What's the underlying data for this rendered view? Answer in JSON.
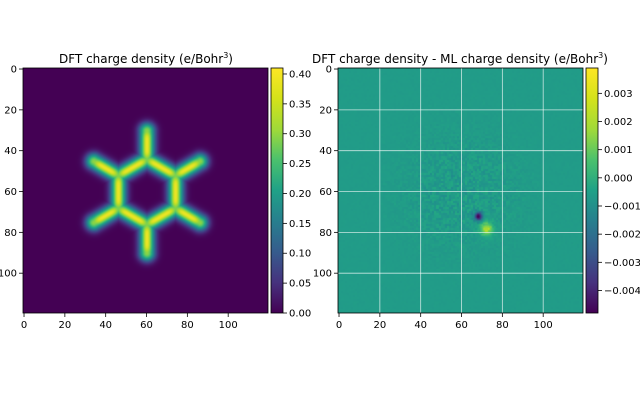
{
  "chart_data": [
    {
      "type": "heatmap",
      "title": "DFT charge density (e/Bohr",
      "title_sup": "3",
      "title_end": ")",
      "colormap": "viridis",
      "grid": false,
      "x_ticks": [
        "0",
        "20",
        "40",
        "60",
        "80",
        "100"
      ],
      "y_ticks": [
        "0",
        "20",
        "40",
        "60",
        "80",
        "100"
      ],
      "x_range": [
        0,
        119
      ],
      "y_range": [
        0,
        119
      ],
      "colorbar": {
        "range": [
          0.0,
          0.41
        ],
        "ticks": [
          "0.00",
          "0.05",
          "0.10",
          "0.15",
          "0.20",
          "0.25",
          "0.30",
          "0.35",
          "0.40"
        ]
      },
      "ring_center": [
        60,
        60
      ],
      "ring_radius": 16,
      "atoms": [
        [
          60,
          44
        ],
        [
          74,
          52
        ],
        [
          74,
          68
        ],
        [
          60,
          76
        ],
        [
          46,
          68
        ],
        [
          46,
          52
        ]
      ],
      "substituents": [
        [
          60,
          30
        ],
        [
          86,
          45
        ],
        [
          86,
          75
        ],
        [
          60,
          90
        ],
        [
          34,
          75
        ],
        [
          34,
          45
        ]
      ]
    },
    {
      "type": "heatmap",
      "title": "DFT charge density - ML charge density (e/Bohr",
      "title_sup": "3",
      "title_end": ")",
      "colormap": "viridis",
      "grid": true,
      "x_ticks": [
        "0",
        "20",
        "40",
        "60",
        "80",
        "100"
      ],
      "y_ticks": [
        "0",
        "20",
        "40",
        "60",
        "80",
        "100"
      ],
      "x_range": [
        0,
        119
      ],
      "y_range": [
        0,
        119
      ],
      "colorbar": {
        "range": [
          -0.0048,
          0.0039
        ],
        "ticks": [
          "0.003",
          "0.002",
          "0.001",
          "0.000",
          "−0.001",
          "−0.002",
          "−0.003",
          "−0.004"
        ]
      },
      "min_spot": [
        68,
        72
      ],
      "max_spot": [
        72,
        78
      ]
    }
  ]
}
